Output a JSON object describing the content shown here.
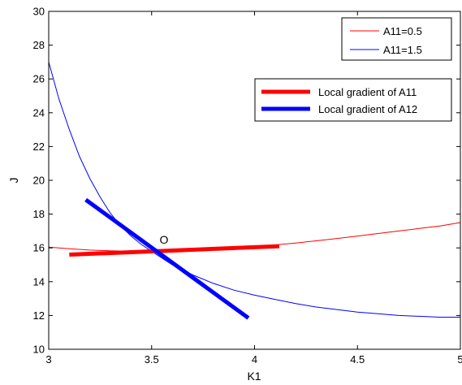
{
  "chart_data": {
    "type": "line",
    "xlabel": "K1",
    "ylabel": "J",
    "xlim": [
      3,
      5
    ],
    "ylim": [
      10,
      30
    ],
    "xticks": [
      3,
      3.5,
      4,
      4.5,
      5
    ],
    "xtick_labels": [
      "3",
      "3.5",
      "4",
      "4.5",
      "5"
    ],
    "yticks": [
      10,
      12,
      14,
      16,
      18,
      20,
      22,
      24,
      26,
      28,
      30
    ],
    "ytick_labels": [
      "10",
      "12",
      "14",
      "16",
      "18",
      "20",
      "22",
      "24",
      "26",
      "28",
      "30"
    ],
    "grid": false,
    "series": [
      {
        "name": "A11=0.5",
        "color": "#ff0000",
        "x": [
          3.0,
          3.1,
          3.2,
          3.3,
          3.4,
          3.5,
          3.6,
          3.7,
          3.8,
          3.9,
          4.0,
          4.1,
          4.2,
          4.3,
          4.4,
          4.5,
          4.6,
          4.7,
          4.8,
          4.9,
          5.0
        ],
        "y": [
          16.05,
          15.95,
          15.87,
          15.83,
          15.81,
          15.82,
          15.85,
          15.89,
          15.94,
          16.0,
          16.08,
          16.18,
          16.29,
          16.42,
          16.56,
          16.7,
          16.85,
          17.0,
          17.15,
          17.3,
          17.5
        ]
      },
      {
        "name": "A11=1.5",
        "color": "#0000ff",
        "x": [
          3.0,
          3.05,
          3.1,
          3.15,
          3.2,
          3.25,
          3.3,
          3.35,
          3.4,
          3.45,
          3.5,
          3.55,
          3.6,
          3.65,
          3.7,
          3.8,
          3.9,
          4.0,
          4.1,
          4.2,
          4.3,
          4.4,
          4.5,
          4.6,
          4.7,
          4.8,
          4.9,
          5.0
        ],
        "y": [
          27.0,
          24.8,
          23.0,
          21.4,
          20.1,
          19.0,
          18.05,
          17.3,
          16.7,
          16.2,
          15.8,
          15.4,
          15.0,
          14.7,
          14.4,
          13.9,
          13.5,
          13.2,
          12.95,
          12.7,
          12.5,
          12.35,
          12.2,
          12.1,
          12.0,
          11.95,
          11.9,
          11.9
        ]
      }
    ],
    "gradients": [
      {
        "name": "Local gradient of A11",
        "color": "#ff0000",
        "x": [
          3.1,
          4.12
        ],
        "y": [
          15.6,
          16.1
        ]
      },
      {
        "name": "Local gradient of A12",
        "color": "#0000ff",
        "x": [
          3.18,
          3.97
        ],
        "y": [
          18.85,
          11.85
        ]
      }
    ],
    "annotations": [
      {
        "text": "O",
        "x": 3.56,
        "y": 16.25
      }
    ],
    "legend_placement": "top-right"
  }
}
